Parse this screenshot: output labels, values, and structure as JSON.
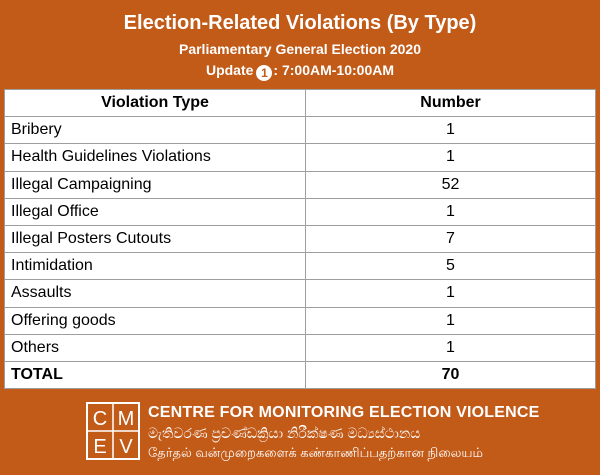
{
  "header": {
    "title": "Election-Related Violations (By Type)",
    "subtitle": "Parliamentary General Election 2020",
    "update_label": "Update",
    "update_number": "1",
    "update_time": ": 7:00AM-10:00AM"
  },
  "colors": {
    "background": "#c25a18",
    "table_bg": "#ffffff",
    "grid": "#9e9e9e"
  },
  "chart_data": {
    "type": "table",
    "columns": [
      "Violation Type",
      "Number"
    ],
    "rows": [
      {
        "type": "Bribery",
        "number": "1"
      },
      {
        "type": "Health Guidelines Violations",
        "number": "1"
      },
      {
        "type": "Illegal Campaigning",
        "number": "52"
      },
      {
        "type": "Illegal Office",
        "number": "1"
      },
      {
        "type": "Illegal Posters Cutouts",
        "number": "7"
      },
      {
        "type": "Intimidation",
        "number": "5"
      },
      {
        "type": "Assaults",
        "number": "1"
      },
      {
        "type": "Offering goods",
        "number": "1"
      },
      {
        "type": "Others",
        "number": "1"
      }
    ],
    "total": {
      "label": "TOTAL",
      "number": "70"
    }
  },
  "footer": {
    "logo_text": "CMEV",
    "org_name_en": "CENTRE FOR MONITORING ELECTION VIOLENCE",
    "org_name_si": "මැතිවරණ ප්‍රචණ්ඩක්‍රියා නිරීක්ෂණ මධ්‍යස්ථානය",
    "org_name_ta": "தேர்தல் வன்முறைகளைக் கண்காணிப்பதற்கான நிலையம்"
  }
}
